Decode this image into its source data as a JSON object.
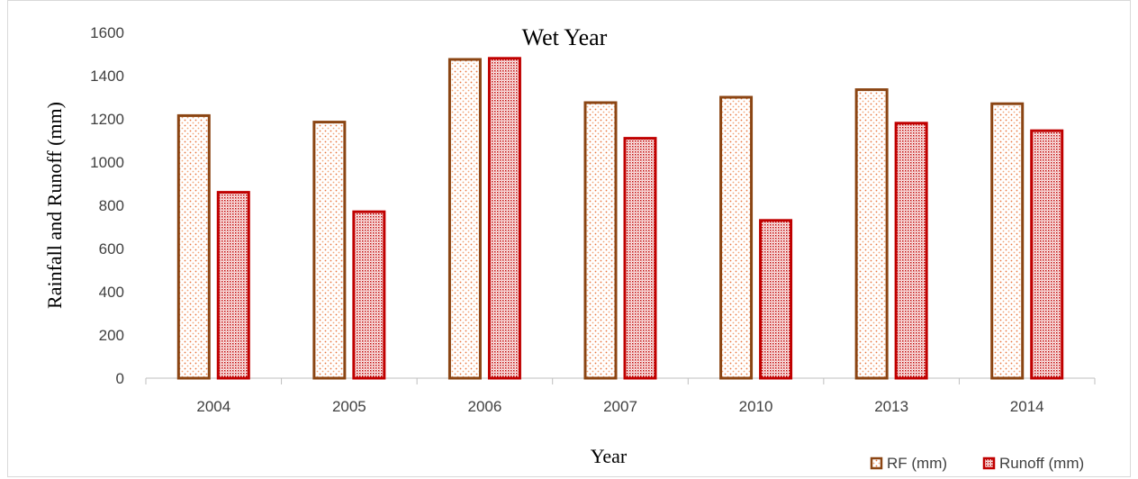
{
  "chart_data": {
    "type": "bar",
    "title": "Wet Year",
    "xlabel": "Year",
    "ylabel": "Rainfall and Runoff (mm)",
    "categories": [
      "2004",
      "2005",
      "2006",
      "2007",
      "2010",
      "2013",
      "2014"
    ],
    "ylim": [
      0,
      1600
    ],
    "yticks": [
      0,
      200,
      400,
      600,
      800,
      1000,
      1200,
      1400,
      1600
    ],
    "grid": false,
    "legend_position": "bottom-right",
    "series": [
      {
        "name": "RF (mm)",
        "values": [
          1215,
          1185,
          1475,
          1275,
          1300,
          1335,
          1270
        ],
        "color": "#8B4513",
        "fill": "#e8743b"
      },
      {
        "name": "Runoff (mm)",
        "values": [
          860,
          770,
          1480,
          1110,
          730,
          1180,
          1145
        ],
        "color": "#c00000",
        "fill": "#c00000"
      }
    ]
  }
}
